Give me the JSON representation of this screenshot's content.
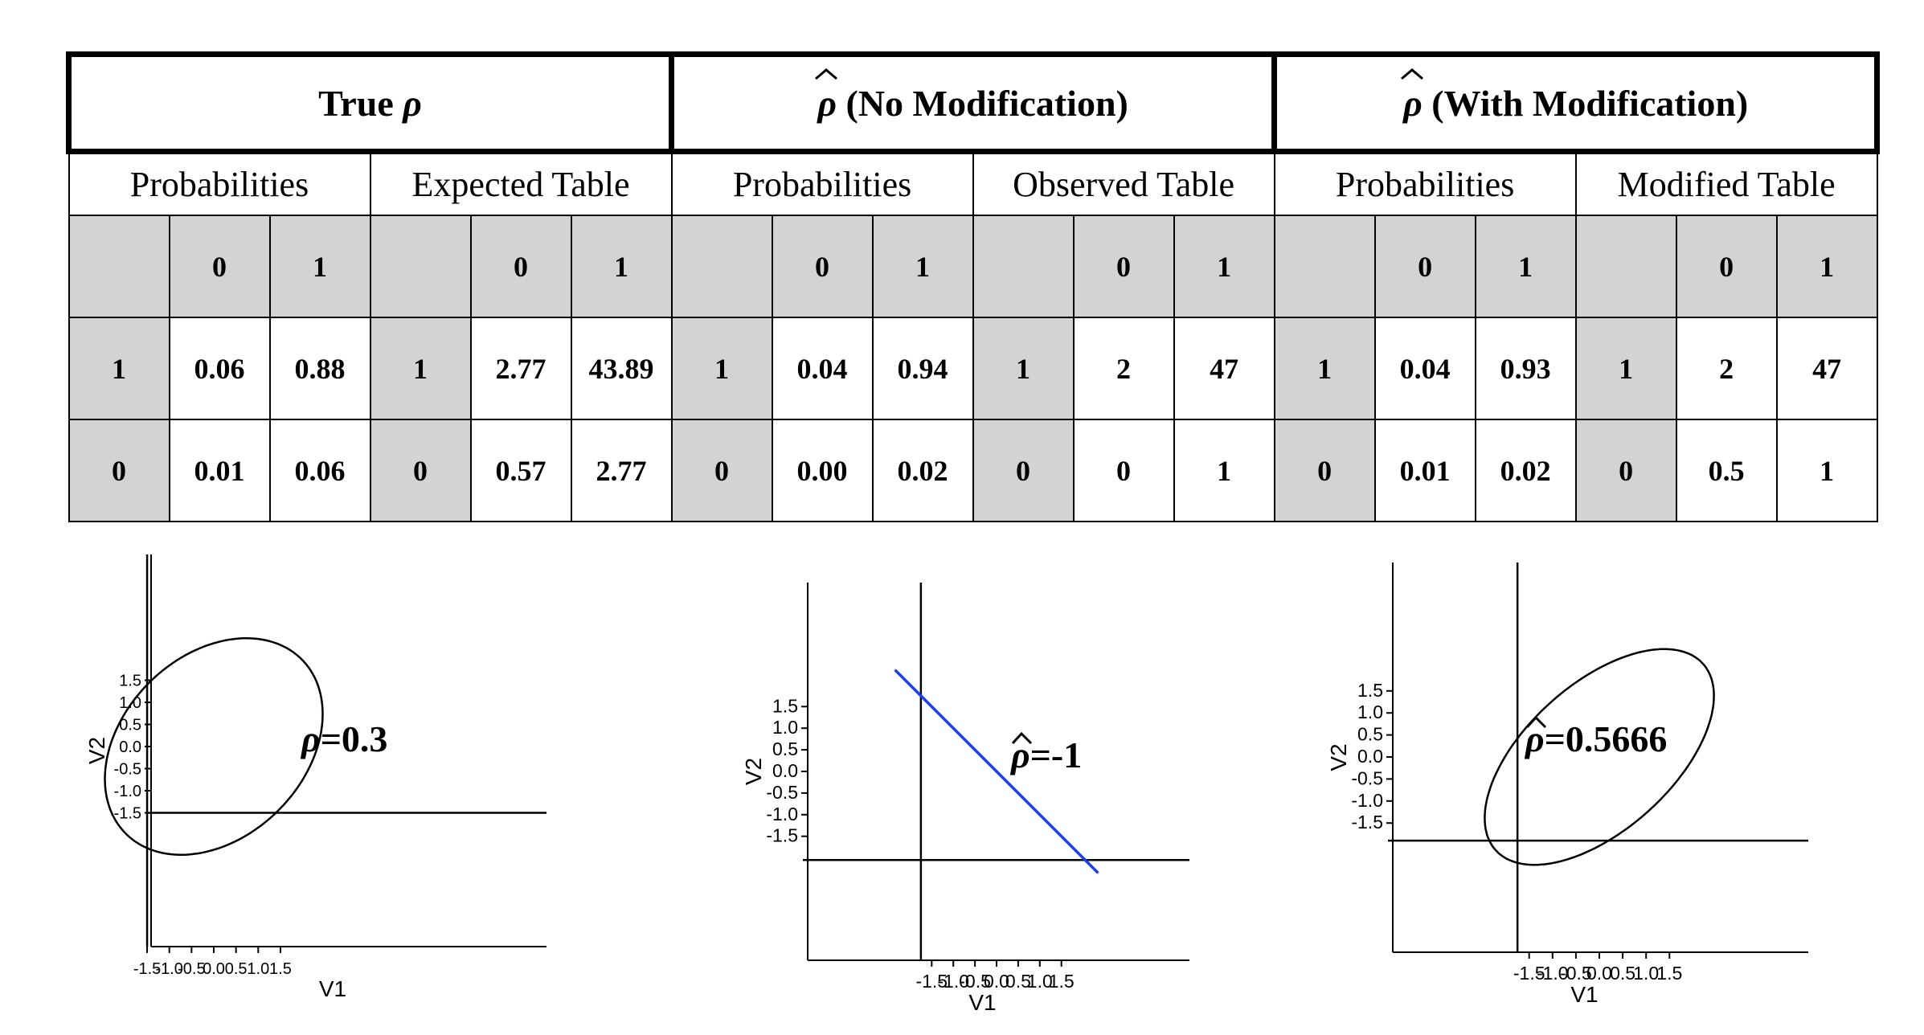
{
  "table": {
    "groups": [
      {
        "label": "True ",
        "symbol": "ρ",
        "hat": false
      },
      {
        "label": " (No Modification)",
        "symbol": "ρ",
        "hat": true
      },
      {
        "label": " (With Modification)",
        "symbol": "ρ",
        "hat": true
      }
    ],
    "subheaders": [
      "Probabilities",
      "Expected Table",
      "Probabilities",
      "Observed Table",
      "Probabilities",
      "Modified Table"
    ],
    "col_header": [
      "",
      "0",
      "1"
    ],
    "blocks": [
      {
        "rows": [
          [
            "1",
            "0.06",
            "0.88"
          ],
          [
            "0",
            "0.01",
            "0.06"
          ]
        ]
      },
      {
        "rows": [
          [
            "1",
            "2.77",
            "43.89"
          ],
          [
            "0",
            "0.57",
            "2.77"
          ]
        ]
      },
      {
        "rows": [
          [
            "1",
            "0.04",
            "0.94"
          ],
          [
            "0",
            "0.00",
            "0.02"
          ]
        ]
      },
      {
        "rows": [
          [
            "1",
            "2",
            "47"
          ],
          [
            "0",
            "0",
            "1"
          ]
        ]
      },
      {
        "rows": [
          [
            "1",
            "0.04",
            "0.93"
          ],
          [
            "0",
            "0.01",
            "0.02"
          ]
        ]
      },
      {
        "rows": [
          [
            "1",
            "2",
            "47"
          ],
          [
            "0",
            "0.5",
            "1"
          ]
        ]
      }
    ]
  },
  "chart_data": [
    {
      "type": "ellipse",
      "title": "",
      "annotation_symbol": "ρ",
      "annotation_hat": false,
      "annotation_value": "=0.3",
      "xlabel": "V1",
      "ylabel": "V2",
      "xticks": [
        "-1.5",
        "-1.0",
        "-0.5",
        "0.0",
        "0.5",
        "1.0",
        "1.5"
      ],
      "yticks": [
        "1.5",
        "1.0",
        "0.5",
        "0.0",
        "-0.5",
        "-1.0",
        "-1.5"
      ],
      "rho": 0.3,
      "threshold_lines": {
        "x": -1.5,
        "y": -1.5
      }
    },
    {
      "type": "line",
      "title": "",
      "annotation_symbol": "ρ",
      "annotation_hat": true,
      "annotation_value": "=-1",
      "xlabel": "V1",
      "ylabel": "V2",
      "xticks": [
        "-1.5",
        "-1.0",
        "-0.5",
        "0.0",
        "0.5",
        "1.0",
        "1.5"
      ],
      "yticks": [
        "1.5",
        "1.0",
        "0.5",
        "0.0",
        "-0.5",
        "-1.0",
        "-1.5"
      ],
      "rho": -1,
      "line_color": "#1f3fe0",
      "threshold_lines": {
        "x": -1.75,
        "y": -2.05
      }
    },
    {
      "type": "ellipse",
      "title": "",
      "annotation_symbol": "ρ",
      "annotation_hat": true,
      "annotation_value": "=0.5666",
      "xlabel": "V1",
      "ylabel": "V2",
      "xticks": [
        "-1.5",
        "-1.0",
        "-0.5",
        "0.0",
        "0.5",
        "1.0",
        "1.5"
      ],
      "yticks": [
        "1.5",
        "1.0",
        "0.5",
        "0.0",
        "-0.5",
        "-1.0",
        "-1.5"
      ],
      "rho": 0.5666,
      "threshold_lines": {
        "x": -1.75,
        "y": -1.9
      }
    }
  ]
}
